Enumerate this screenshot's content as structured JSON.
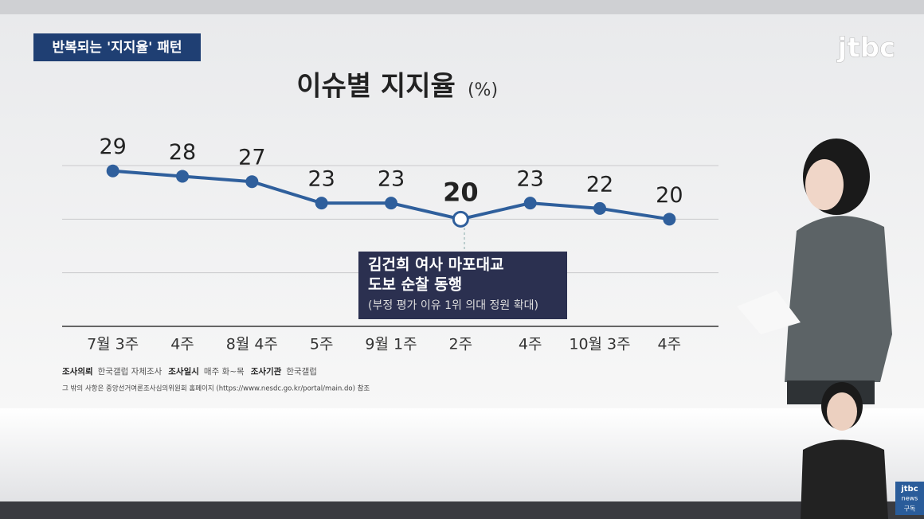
{
  "chart_data": {
    "type": "line",
    "title": "이슈별 지지율",
    "unit": "(%)",
    "categories": [
      "7월 3주",
      "4주",
      "8월 4주",
      "5주",
      "9월 1주",
      "2주",
      "4주",
      "10월 3주",
      "4주"
    ],
    "series": [
      {
        "color": "#2f5f9c",
        "values": [
          29,
          28,
          27,
          23,
          23,
          20,
          23,
          22,
          20
        ]
      }
    ],
    "ylim": [
      0,
      30
    ],
    "yticks": [
      0,
      10,
      20,
      30
    ],
    "grid": true,
    "highlight_index": 5,
    "annotation": {
      "lines": [
        "김건희 여사 마포대교",
        "도보 순찰 동행"
      ],
      "note": "(부정 평가 이유 1위 의대 정원 확대)"
    }
  },
  "overlay": {
    "tag": "반복되는 '지지율' 패턴",
    "logo": "jtbc",
    "source": [
      [
        "조사의뢰",
        "한국갤럽 자체조사"
      ],
      [
        "조사일시",
        "매주 화~목"
      ],
      [
        "조사기관",
        "한국갤럽"
      ]
    ],
    "footnote": "그 밖의 사항은 중앙선거여론조사심의위원회 홈페이지 (https://www.nesdc.go.kr/portal/main.do) 참조",
    "badge": [
      "jtbc",
      "news",
      "구독"
    ]
  }
}
